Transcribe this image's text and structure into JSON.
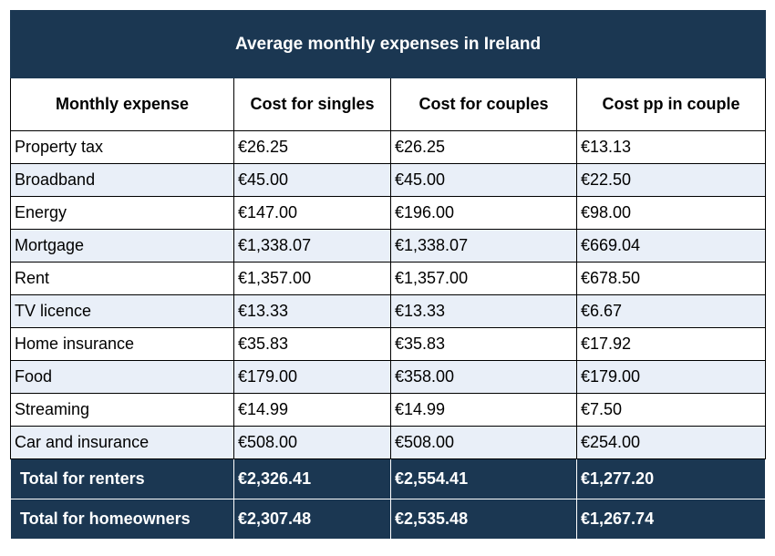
{
  "table": {
    "title": "Average monthly expenses in Ireland",
    "headers": [
      "Monthly expense",
      "Cost for singles",
      "Cost for couples",
      "Cost pp in couple"
    ],
    "rows": [
      [
        "Property tax",
        "€26.25",
        "€26.25",
        "€13.13"
      ],
      [
        "Broadband",
        "€45.00",
        "€45.00",
        "€22.50"
      ],
      [
        "Energy",
        "€147.00",
        "€196.00",
        "€98.00"
      ],
      [
        "Mortgage",
        "€1,338.07",
        "€1,338.07",
        "€669.04"
      ],
      [
        "Rent",
        "€1,357.00",
        "€1,357.00",
        "€678.50"
      ],
      [
        "TV licence",
        "€13.33",
        "€13.33",
        "€6.67"
      ],
      [
        "Home insurance",
        "€35.83",
        "€35.83",
        "€17.92"
      ],
      [
        "Food",
        "€179.00",
        "€358.00",
        "€179.00"
      ],
      [
        "Streaming",
        "€14.99",
        "€14.99",
        "€7.50"
      ],
      [
        "Car and insurance",
        "€508.00",
        "€508.00",
        "€254.00"
      ]
    ],
    "totals": [
      [
        "Total for renters",
        "€2,326.41",
        "€2,554.41",
        "€1,277.20"
      ],
      [
        "Total for homeowners",
        "€2,307.48",
        "€2,535.48",
        "€1,267.74"
      ]
    ],
    "colors": {
      "header_bg": "#1b3752",
      "stripe_bg": "#e9eff8",
      "total_text": "#ffffff"
    }
  }
}
